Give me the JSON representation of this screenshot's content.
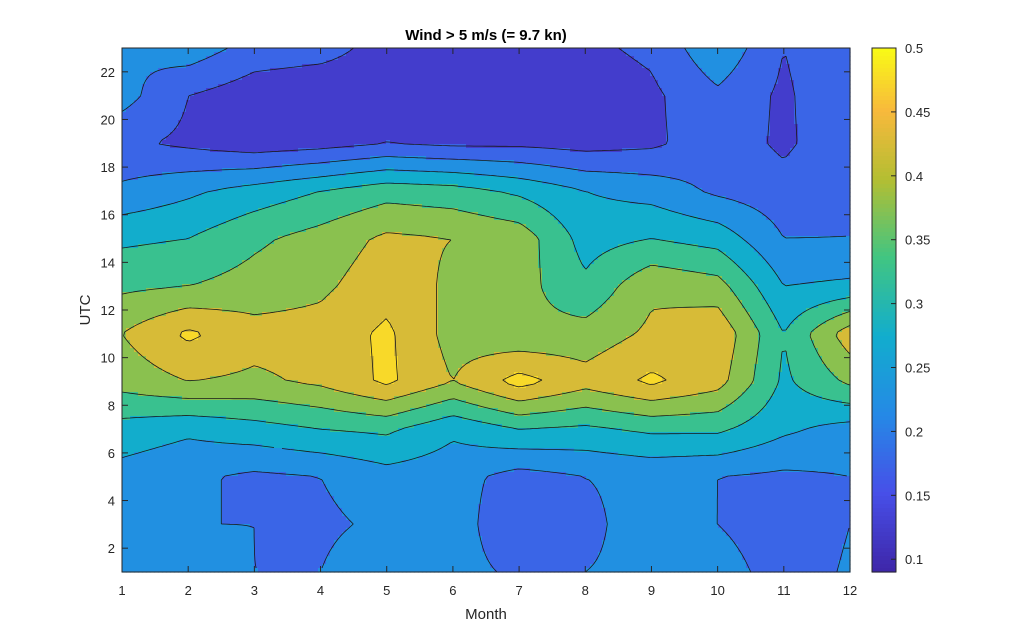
{
  "chart_data": {
    "type": "heatmap",
    "style": "filled-contour",
    "title": "Wind > 5 m/s (= 9.7 kn)",
    "xlabel": "Month",
    "ylabel": "UTC",
    "xlim": [
      1,
      12
    ],
    "ylim": [
      1,
      23
    ],
    "x_ticks": [
      1,
      2,
      3,
      4,
      5,
      6,
      7,
      8,
      9,
      10,
      11,
      12
    ],
    "y_ticks": [
      2,
      4,
      6,
      8,
      10,
      12,
      14,
      16,
      18,
      20,
      22
    ],
    "colorbar": {
      "colormap": "parula",
      "range": [
        0.09,
        0.5
      ],
      "ticks": [
        0.1,
        0.15,
        0.2,
        0.25,
        0.3,
        0.35,
        0.4,
        0.45,
        0.5
      ],
      "tick_labels": [
        "0.1",
        "0.15",
        "0.2",
        "0.25",
        "0.3",
        "0.35",
        "0.4",
        "0.45",
        "0.5"
      ]
    },
    "contour_levels": [
      0.1,
      0.15,
      0.2,
      0.25,
      0.3,
      0.35,
      0.4,
      0.45,
      0.5
    ],
    "grid": false,
    "x": [
      1,
      2,
      3,
      4,
      5,
      6,
      7,
      8,
      9,
      10,
      11,
      12
    ],
    "y": [
      1,
      3,
      5,
      7,
      9,
      11,
      13,
      15,
      17,
      19,
      21,
      23
    ],
    "z": [
      [
        0.22,
        0.21,
        0.2,
        0.2,
        0.24,
        0.22,
        0.19,
        0.2,
        0.21,
        0.24,
        0.16,
        0.21
      ],
      [
        0.23,
        0.2,
        0.2,
        0.19,
        0.21,
        0.23,
        0.15,
        0.19,
        0.22,
        0.2,
        0.15,
        0.2
      ],
      [
        0.23,
        0.21,
        0.19,
        0.2,
        0.23,
        0.22,
        0.18,
        0.2,
        0.21,
        0.2,
        0.19,
        0.2
      ],
      [
        0.28,
        0.26,
        0.28,
        0.3,
        0.31,
        0.26,
        0.3,
        0.29,
        0.31,
        0.31,
        0.26,
        0.23
      ],
      [
        0.37,
        0.4,
        0.39,
        0.41,
        0.46,
        0.4,
        0.47,
        0.42,
        0.46,
        0.42,
        0.29,
        0.36
      ],
      [
        0.4,
        0.46,
        0.42,
        0.42,
        0.46,
        0.38,
        0.36,
        0.37,
        0.41,
        0.44,
        0.3,
        0.43
      ],
      [
        0.34,
        0.35,
        0.37,
        0.39,
        0.43,
        0.39,
        0.37,
        0.31,
        0.39,
        0.37,
        0.25,
        0.26
      ],
      [
        0.29,
        0.3,
        0.34,
        0.37,
        0.41,
        0.4,
        0.38,
        0.28,
        0.3,
        0.28,
        0.2,
        0.2
      ],
      [
        0.21,
        0.24,
        0.27,
        0.3,
        0.33,
        0.32,
        0.29,
        0.25,
        0.23,
        0.19,
        0.17,
        0.2
      ],
      [
        0.16,
        0.14,
        0.12,
        0.13,
        0.15,
        0.14,
        0.14,
        0.13,
        0.14,
        0.18,
        0.14,
        0.19
      ],
      [
        0.22,
        0.15,
        0.12,
        0.11,
        0.12,
        0.13,
        0.11,
        0.12,
        0.14,
        0.19,
        0.14,
        0.2
      ],
      [
        0.2,
        0.23,
        0.18,
        0.17,
        0.13,
        0.12,
        0.13,
        0.14,
        0.16,
        0.24,
        0.15,
        0.2
      ]
    ]
  }
}
